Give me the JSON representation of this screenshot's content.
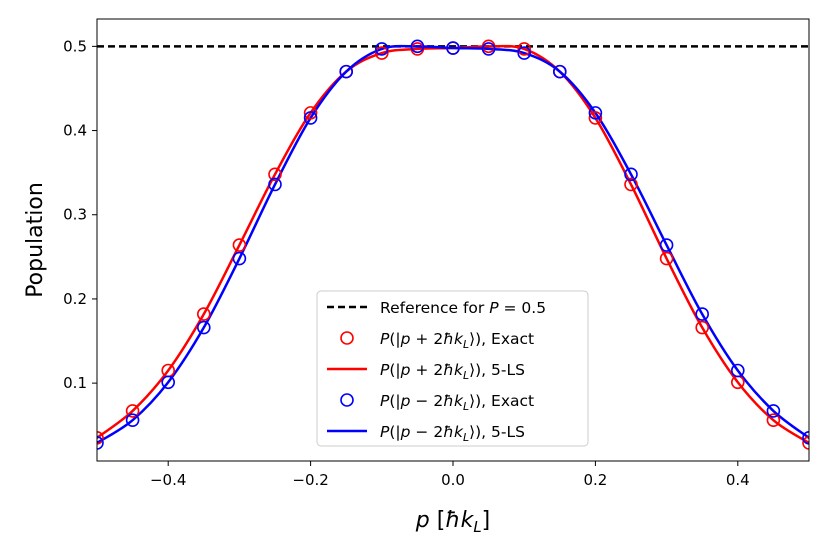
{
  "chart_data": {
    "type": "line",
    "title": "",
    "xlabel": "p [ħk_L]",
    "ylabel": "Population",
    "xlim": [
      -0.5,
      0.5
    ],
    "ylim": [
      0.0075,
      0.5325
    ],
    "grid": false,
    "legend_position": "lower-center",
    "xticks": [
      -0.4,
      -0.2,
      0.0,
      0.2,
      0.4
    ],
    "xtick_labels": [
      "−0.4",
      "−0.2",
      "0.0",
      "0.2",
      "0.4"
    ],
    "yticks": [
      0.1,
      0.2,
      0.3,
      0.4,
      0.5
    ],
    "ytick_labels": [
      "0.1",
      "0.2",
      "0.3",
      "0.4",
      "0.5"
    ],
    "reference": {
      "name": "Reference for P = 0.5",
      "value": 0.5,
      "color": "#000000"
    },
    "series": [
      {
        "name": "P(|p + 2ħk_L⟩), Exact",
        "kind": "markers",
        "color": "#ff0000",
        "x": [
          -0.5,
          -0.45,
          -0.4,
          -0.35,
          -0.3,
          -0.25,
          -0.2,
          -0.15,
          -0.1,
          -0.05,
          0.0,
          0.05,
          0.1,
          0.15,
          0.2,
          0.25,
          0.3,
          0.35,
          0.4,
          0.45,
          0.5
        ],
        "y": [
          0.035,
          0.067,
          0.115,
          0.182,
          0.264,
          0.348,
          0.421,
          0.47,
          0.492,
          0.497,
          0.498,
          0.5,
          0.497,
          0.47,
          0.415,
          0.336,
          0.248,
          0.166,
          0.101,
          0.056,
          0.029
        ]
      },
      {
        "name": "P(|p + 2ħk_L⟩), 5-LS",
        "kind": "line",
        "color": "#ff0000",
        "x": [
          -0.5,
          -0.45,
          -0.4,
          -0.35,
          -0.3,
          -0.25,
          -0.2,
          -0.15,
          -0.1,
          -0.05,
          0.0,
          0.05,
          0.1,
          0.15,
          0.2,
          0.25,
          0.3,
          0.35,
          0.4,
          0.45,
          0.5
        ],
        "y": [
          0.035,
          0.067,
          0.115,
          0.182,
          0.264,
          0.348,
          0.421,
          0.47,
          0.492,
          0.497,
          0.498,
          0.5,
          0.497,
          0.47,
          0.415,
          0.336,
          0.248,
          0.166,
          0.101,
          0.056,
          0.029
        ]
      },
      {
        "name": "P(|p − 2ħk_L⟩), Exact",
        "kind": "markers",
        "color": "#0000ff",
        "x": [
          -0.5,
          -0.45,
          -0.4,
          -0.35,
          -0.3,
          -0.25,
          -0.2,
          -0.15,
          -0.1,
          -0.05,
          0.0,
          0.05,
          0.1,
          0.15,
          0.2,
          0.25,
          0.3,
          0.35,
          0.4,
          0.45,
          0.5
        ],
        "y": [
          0.029,
          0.056,
          0.101,
          0.166,
          0.248,
          0.336,
          0.415,
          0.47,
          0.497,
          0.5,
          0.498,
          0.497,
          0.492,
          0.47,
          0.421,
          0.348,
          0.264,
          0.182,
          0.115,
          0.067,
          0.035
        ]
      },
      {
        "name": "P(|p − 2ħk_L⟩), 5-LS",
        "kind": "line",
        "color": "#0000ff",
        "x": [
          -0.5,
          -0.45,
          -0.4,
          -0.35,
          -0.3,
          -0.25,
          -0.2,
          -0.15,
          -0.1,
          -0.05,
          0.0,
          0.05,
          0.1,
          0.15,
          0.2,
          0.25,
          0.3,
          0.35,
          0.4,
          0.45,
          0.5
        ],
        "y": [
          0.029,
          0.056,
          0.101,
          0.166,
          0.248,
          0.336,
          0.415,
          0.47,
          0.497,
          0.5,
          0.498,
          0.497,
          0.492,
          0.47,
          0.421,
          0.348,
          0.264,
          0.182,
          0.115,
          0.067,
          0.035
        ]
      }
    ]
  }
}
